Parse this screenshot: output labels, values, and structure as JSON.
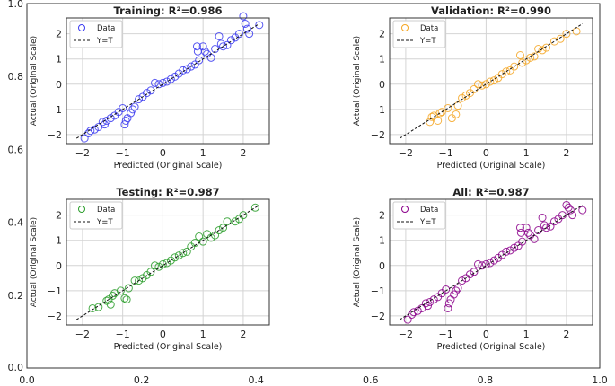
{
  "chart_data": {
    "type": "scatter",
    "background_axis": {
      "xlim": [
        0,
        1
      ],
      "ylim": [
        0,
        1
      ],
      "xticks": [
        "0.0",
        "0.2",
        "0.4",
        "0.6",
        "0.8",
        "1.0"
      ],
      "yticks": [
        "0.0",
        "0.2",
        "0.4",
        "0.6",
        "0.8",
        "1.0"
      ]
    },
    "panels": [
      {
        "title": "Training: R²=0.986",
        "color": "#3b3bf0",
        "xlabel": "Predicted (Original Scale)",
        "ylabel": "Actual (Original Scale)",
        "xlim": [
          -2.4,
          2.65
        ],
        "ylim": [
          -2.36,
          2.63
        ],
        "xticks": [
          -2,
          -1,
          0,
          1,
          2
        ],
        "yticks": [
          -2,
          -1,
          0,
          1,
          2
        ],
        "grid": true,
        "legend": {
          "placement": "top-left",
          "data_label": "Data",
          "line_label": "Y=T"
        },
        "points": [
          [
            -1.95,
            -2.15
          ],
          [
            -1.85,
            -1.95
          ],
          [
            -1.8,
            -1.85
          ],
          [
            -1.7,
            -1.8
          ],
          [
            -1.6,
            -1.7
          ],
          [
            -1.5,
            -1.5
          ],
          [
            -1.45,
            -1.6
          ],
          [
            -1.4,
            -1.45
          ],
          [
            -1.3,
            -1.35
          ],
          [
            -1.2,
            -1.25
          ],
          [
            -1.1,
            -1.1
          ],
          [
            -1.0,
            -0.95
          ],
          [
            -0.95,
            -1.6
          ],
          [
            -0.92,
            -1.45
          ],
          [
            -0.88,
            -1.35
          ],
          [
            -0.8,
            -1.15
          ],
          [
            -0.75,
            -1.0
          ],
          [
            -0.7,
            -0.9
          ],
          [
            -0.6,
            -0.6
          ],
          [
            -0.5,
            -0.5
          ],
          [
            -0.4,
            -0.35
          ],
          [
            -0.3,
            -0.25
          ],
          [
            -0.2,
            0.05
          ],
          [
            -0.1,
            0.0
          ],
          [
            0,
            0.05
          ],
          [
            0.1,
            0.1
          ],
          [
            0.2,
            0.2
          ],
          [
            0.3,
            0.3
          ],
          [
            0.4,
            0.42
          ],
          [
            0.5,
            0.55
          ],
          [
            0.6,
            0.6
          ],
          [
            0.7,
            0.7
          ],
          [
            0.8,
            0.78
          ],
          [
            0.85,
            1.5
          ],
          [
            0.87,
            1.3
          ],
          [
            0.9,
            0.95
          ],
          [
            1.0,
            1.5
          ],
          [
            1.05,
            1.3
          ],
          [
            1.1,
            1.2
          ],
          [
            1.2,
            1.05
          ],
          [
            1.3,
            1.4
          ],
          [
            1.4,
            1.9
          ],
          [
            1.45,
            1.6
          ],
          [
            1.5,
            1.5
          ],
          [
            1.6,
            1.55
          ],
          [
            1.7,
            1.75
          ],
          [
            1.8,
            1.85
          ],
          [
            1.9,
            2.0
          ],
          [
            2.0,
            2.7
          ],
          [
            2.05,
            2.4
          ],
          [
            2.1,
            2.2
          ],
          [
            2.15,
            2.0
          ],
          [
            2.4,
            2.35
          ]
        ]
      },
      {
        "title": "Validation: R²=0.990",
        "color": "#f5a623",
        "xlabel": "Predicted (Original Scale)",
        "ylabel": "Actual (Original Scale)",
        "xlim": [
          -2.4,
          2.65
        ],
        "ylim": [
          -2.36,
          2.63
        ],
        "xticks": [
          -2,
          -1,
          0,
          1,
          2
        ],
        "yticks": [
          -2,
          -1,
          0,
          1,
          2
        ],
        "grid": true,
        "legend": {
          "placement": "top-left",
          "data_label": "Data",
          "line_label": "Y=T"
        },
        "points": [
          [
            -1.4,
            -1.5
          ],
          [
            -1.35,
            -1.3
          ],
          [
            -1.3,
            -1.25
          ],
          [
            -1.2,
            -1.45
          ],
          [
            -1.15,
            -1.15
          ],
          [
            -1.1,
            -1.1
          ],
          [
            -0.95,
            -0.95
          ],
          [
            -0.85,
            -1.35
          ],
          [
            -0.75,
            -1.2
          ],
          [
            -0.7,
            -0.85
          ],
          [
            -0.6,
            -0.55
          ],
          [
            -0.5,
            -0.45
          ],
          [
            -0.4,
            -0.35
          ],
          [
            -0.3,
            -0.2
          ],
          [
            -0.2,
            0.0
          ],
          [
            -0.1,
            -0.05
          ],
          [
            0,
            0.0
          ],
          [
            0.1,
            0.1
          ],
          [
            0.2,
            0.15
          ],
          [
            0.3,
            0.25
          ],
          [
            0.4,
            0.4
          ],
          [
            0.5,
            0.5
          ],
          [
            0.6,
            0.55
          ],
          [
            0.7,
            0.7
          ],
          [
            0.85,
            1.15
          ],
          [
            0.9,
            0.85
          ],
          [
            1.0,
            0.95
          ],
          [
            1.1,
            1.05
          ],
          [
            1.2,
            1.1
          ],
          [
            1.3,
            1.4
          ],
          [
            1.4,
            1.35
          ],
          [
            1.5,
            1.45
          ],
          [
            1.7,
            1.7
          ],
          [
            1.85,
            1.8
          ],
          [
            2.0,
            2.0
          ],
          [
            2.25,
            2.1
          ]
        ]
      },
      {
        "title": "Testing: R²=0.987",
        "color": "#2a9d2a",
        "xlabel": "Predicted (Original Scale)",
        "ylabel": "Actual (Original Scale)",
        "xlim": [
          -2.4,
          2.65
        ],
        "ylim": [
          -2.36,
          2.63
        ],
        "xticks": [
          -2,
          -1,
          0,
          1,
          2
        ],
        "yticks": [
          -2,
          -1,
          0,
          1,
          2
        ],
        "grid": true,
        "legend": {
          "placement": "top-left",
          "data_label": "Data",
          "line_label": "Y=T"
        },
        "points": [
          [
            -1.75,
            -1.7
          ],
          [
            -1.6,
            -1.65
          ],
          [
            -1.4,
            -1.4
          ],
          [
            -1.35,
            -1.35
          ],
          [
            -1.3,
            -1.55
          ],
          [
            -1.25,
            -1.2
          ],
          [
            -1.2,
            -1.1
          ],
          [
            -1.05,
            -1.0
          ],
          [
            -0.95,
            -1.3
          ],
          [
            -0.9,
            -1.35
          ],
          [
            -0.85,
            -0.9
          ],
          [
            -0.7,
            -0.6
          ],
          [
            -0.6,
            -0.6
          ],
          [
            -0.5,
            -0.5
          ],
          [
            -0.4,
            -0.38
          ],
          [
            -0.3,
            -0.25
          ],
          [
            -0.2,
            0.0
          ],
          [
            -0.1,
            -0.05
          ],
          [
            0,
            0.05
          ],
          [
            0.1,
            0.1
          ],
          [
            0.2,
            0.2
          ],
          [
            0.3,
            0.32
          ],
          [
            0.4,
            0.4
          ],
          [
            0.5,
            0.5
          ],
          [
            0.6,
            0.55
          ],
          [
            0.7,
            0.75
          ],
          [
            0.8,
            0.9
          ],
          [
            0.9,
            1.15
          ],
          [
            1.0,
            0.95
          ],
          [
            1.1,
            1.25
          ],
          [
            1.2,
            1.1
          ],
          [
            1.3,
            1.2
          ],
          [
            1.4,
            1.4
          ],
          [
            1.5,
            1.5
          ],
          [
            1.6,
            1.75
          ],
          [
            1.8,
            1.75
          ],
          [
            1.9,
            1.85
          ],
          [
            2.0,
            2.0
          ],
          [
            2.3,
            2.3
          ]
        ]
      },
      {
        "title": "All: R²=0.987",
        "color": "#8b008b",
        "xlabel": "Predicted (Original Scale)",
        "ylabel": "Actual (Original Scale)",
        "xlim": [
          -2.4,
          2.65
        ],
        "ylim": [
          -2.36,
          2.63
        ],
        "xticks": [
          -2,
          -1,
          0,
          1,
          2
        ],
        "yticks": [
          -2,
          -1,
          0,
          1,
          2
        ],
        "grid": true,
        "legend": {
          "placement": "top-left",
          "data_label": "Data",
          "line_label": "Y=T"
        },
        "points": [
          [
            -1.95,
            -2.15
          ],
          [
            -1.85,
            -1.95
          ],
          [
            -1.8,
            -1.85
          ],
          [
            -1.7,
            -1.8
          ],
          [
            -1.6,
            -1.7
          ],
          [
            -1.5,
            -1.5
          ],
          [
            -1.45,
            -1.6
          ],
          [
            -1.4,
            -1.45
          ],
          [
            -1.3,
            -1.35
          ],
          [
            -1.2,
            -1.25
          ],
          [
            -1.1,
            -1.1
          ],
          [
            -1.0,
            -0.95
          ],
          [
            -0.95,
            -1.7
          ],
          [
            -0.92,
            -1.5
          ],
          [
            -0.88,
            -1.35
          ],
          [
            -0.8,
            -1.15
          ],
          [
            -0.75,
            -1.0
          ],
          [
            -0.7,
            -0.9
          ],
          [
            -0.6,
            -0.6
          ],
          [
            -0.5,
            -0.5
          ],
          [
            -0.4,
            -0.35
          ],
          [
            -0.3,
            -0.25
          ],
          [
            -0.2,
            0.05
          ],
          [
            -0.1,
            0.0
          ],
          [
            0,
            0.05
          ],
          [
            0.1,
            0.1
          ],
          [
            0.2,
            0.2
          ],
          [
            0.3,
            0.3
          ],
          [
            0.4,
            0.42
          ],
          [
            0.5,
            0.55
          ],
          [
            0.6,
            0.6
          ],
          [
            0.7,
            0.7
          ],
          [
            0.8,
            0.78
          ],
          [
            0.85,
            1.5
          ],
          [
            0.87,
            1.3
          ],
          [
            0.9,
            0.95
          ],
          [
            1.0,
            1.5
          ],
          [
            1.05,
            1.3
          ],
          [
            1.1,
            1.2
          ],
          [
            1.2,
            1.05
          ],
          [
            1.3,
            1.4
          ],
          [
            1.4,
            1.9
          ],
          [
            1.45,
            1.6
          ],
          [
            1.5,
            1.5
          ],
          [
            1.6,
            1.55
          ],
          [
            1.7,
            1.75
          ],
          [
            1.8,
            1.85
          ],
          [
            1.9,
            2.0
          ],
          [
            2.0,
            2.4
          ],
          [
            2.05,
            2.3
          ],
          [
            2.1,
            2.2
          ],
          [
            2.15,
            2.0
          ],
          [
            2.4,
            2.2
          ]
        ]
      }
    ]
  }
}
